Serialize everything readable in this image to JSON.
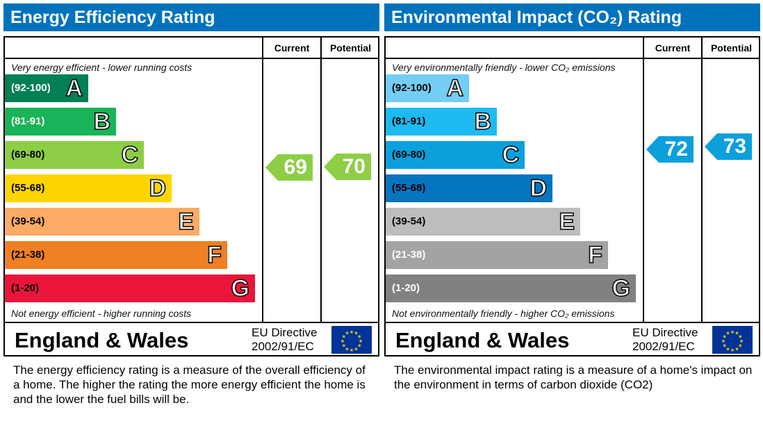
{
  "chart_data": [
    {
      "type": "bar",
      "title": "Energy Efficiency Rating",
      "columns": [
        "Current",
        "Potential"
      ],
      "top_note": "Very energy efficient - lower running costs",
      "bottom_note": "Not energy efficient - higher running costs",
      "bands": [
        {
          "range": "(92-100)",
          "letter": "A",
          "color": "#008054",
          "text": "#fff"
        },
        {
          "range": "(81-91)",
          "letter": "B",
          "color": "#19b459",
          "text": "#fff"
        },
        {
          "range": "(69-80)",
          "letter": "C",
          "color": "#8dce46",
          "text": "#000"
        },
        {
          "range": "(55-68)",
          "letter": "D",
          "color": "#ffd500",
          "text": "#000"
        },
        {
          "range": "(39-54)",
          "letter": "E",
          "color": "#fcaa65",
          "text": "#000"
        },
        {
          "range": "(21-38)",
          "letter": "F",
          "color": "#ef8023",
          "text": "#000"
        },
        {
          "range": "(1-20)",
          "letter": "G",
          "color": "#e9153b",
          "text": "#000"
        }
      ],
      "current": {
        "value": "69",
        "color": "#8dce46"
      },
      "potential": {
        "value": "70",
        "color": "#8dce46"
      },
      "region": "England & Wales",
      "directive": [
        "EU Directive",
        "2002/91/EC"
      ],
      "description": "The energy efficiency rating is a measure of the overall efficiency of a home.  The higher the rating the more energy efficient the home is and the lower the fuel bills will be."
    },
    {
      "type": "bar",
      "title": "Environmental Impact (CO₂) Rating",
      "columns": [
        "Current",
        "Potential"
      ],
      "top_note": "Very environmentally friendly - lower CO₂ emissions",
      "bottom_note": "Not environmentally friendly - higher CO₂ emissions",
      "bands": [
        {
          "range": "(92-100)",
          "letter": "A",
          "color": "#73cdf4",
          "text": "#000"
        },
        {
          "range": "(81-91)",
          "letter": "B",
          "color": "#1ebaf2",
          "text": "#000"
        },
        {
          "range": "(69-80)",
          "letter": "C",
          "color": "#0b9fdc",
          "text": "#000"
        },
        {
          "range": "(55-68)",
          "letter": "D",
          "color": "#0675c1",
          "text": "#000"
        },
        {
          "range": "(39-54)",
          "letter": "E",
          "color": "#bdbdbd",
          "text": "#000"
        },
        {
          "range": "(21-38)",
          "letter": "F",
          "color": "#a3a3a3",
          "text": "#fff"
        },
        {
          "range": "(1-20)",
          "letter": "G",
          "color": "#818181",
          "text": "#fff"
        }
      ],
      "current": {
        "value": "72",
        "color": "#0b9fdc"
      },
      "potential": {
        "value": "73",
        "color": "#0b9fdc"
      },
      "region": "England & Wales",
      "directive": [
        "EU Directive",
        "2002/91/EC"
      ],
      "description": "The environmental impact rating is a measure of a home's impact on the environment in terms of carbon dioxide (CO2)"
    }
  ]
}
